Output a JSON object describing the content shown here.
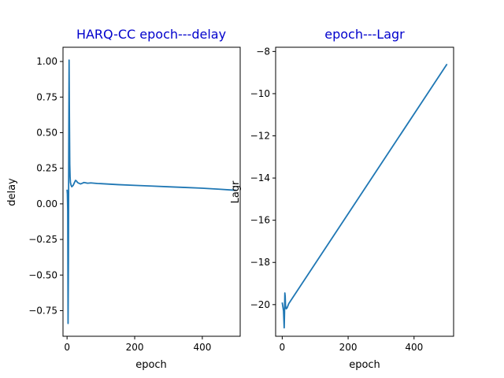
{
  "chart_data": [
    {
      "type": "line",
      "title": "HARQ-CC epoch---delay",
      "xlabel": "epoch",
      "ylabel": "delay",
      "xlim": [
        -12,
        512
      ],
      "ylim": [
        -0.93,
        1.1
      ],
      "xticks": [
        0,
        200,
        400
      ],
      "yticks": [
        -0.75,
        -0.5,
        -0.25,
        0.0,
        0.25,
        0.5,
        0.75,
        1.0
      ],
      "ytick_labels": [
        "−0.75",
        "−0.50",
        "−0.25",
        "0.00",
        "0.25",
        "0.50",
        "0.75",
        "1.00"
      ],
      "grid": false,
      "title_color": "#0000cc",
      "line_color": "#1f77b4",
      "series": [
        {
          "x": [
            0,
            1,
            2,
            3,
            4,
            5,
            6,
            7,
            8,
            9,
            10,
            12,
            14,
            16,
            18,
            20,
            22,
            25,
            28,
            31,
            35,
            40,
            45,
            50,
            55,
            60,
            65,
            70,
            80,
            90,
            100,
            150,
            200,
            250,
            300,
            350,
            400,
            450,
            500
          ],
          "y": [
            0.1,
            0.07,
            -0.05,
            -0.84,
            -0.4,
            0.4,
            1.01,
            0.6,
            0.28,
            0.19,
            0.15,
            0.13,
            0.12,
            0.125,
            0.13,
            0.14,
            0.15,
            0.165,
            0.16,
            0.15,
            0.145,
            0.14,
            0.145,
            0.15,
            0.148,
            0.145,
            0.146,
            0.147,
            0.145,
            0.143,
            0.142,
            0.135,
            0.13,
            0.125,
            0.12,
            0.115,
            0.11,
            0.103,
            0.095
          ]
        }
      ]
    },
    {
      "type": "line",
      "title": "epoch---Lagr",
      "xlabel": "epoch",
      "ylabel": "Lagr",
      "xlim": [
        -20,
        520
      ],
      "ylim": [
        -21.5,
        -7.8
      ],
      "xticks": [
        0,
        200,
        400
      ],
      "yticks": [
        -20,
        -18,
        -16,
        -14,
        -12,
        -10,
        -8
      ],
      "ytick_labels": [
        "−20",
        "−18",
        "−16",
        "−14",
        "−12",
        "−10",
        "−8"
      ],
      "grid": false,
      "title_color": "#0000cc",
      "line_color": "#1f77b4",
      "series": [
        {
          "x": [
            0,
            2,
            4,
            6,
            7,
            8,
            9,
            10,
            12,
            15,
            20,
            500
          ],
          "y": [
            -19.9,
            -20.1,
            -20.3,
            -21.1,
            -20.4,
            -19.45,
            -19.6,
            -20.05,
            -20.2,
            -20.15,
            -19.95,
            -8.6
          ]
        }
      ]
    }
  ]
}
